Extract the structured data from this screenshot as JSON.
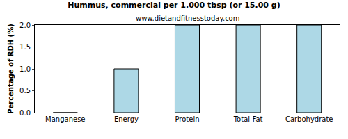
{
  "chart_data": {
    "type": "bar",
    "title": "Hummus, commercial per 1.000 tbsp (or 15.00 g)",
    "subtitle": "www.dietandfitnesstoday.com",
    "y_label": "Percentage of RDH (%)",
    "categories": [
      "Manganese",
      "Energy",
      "Protein",
      "Total-Fat",
      "Carbohydrate"
    ],
    "values": [
      0,
      1,
      2,
      2,
      2
    ],
    "color": "#add8e6",
    "ylim": [
      0,
      2
    ],
    "yticks": [
      {
        "value": 0,
        "label": "0.0"
      },
      0.5,
      {
        "value": 1,
        "label": "1.0"
      },
      1.5,
      {
        "value": 2,
        "label": "2.0"
      }
    ],
    "grid": false
  }
}
